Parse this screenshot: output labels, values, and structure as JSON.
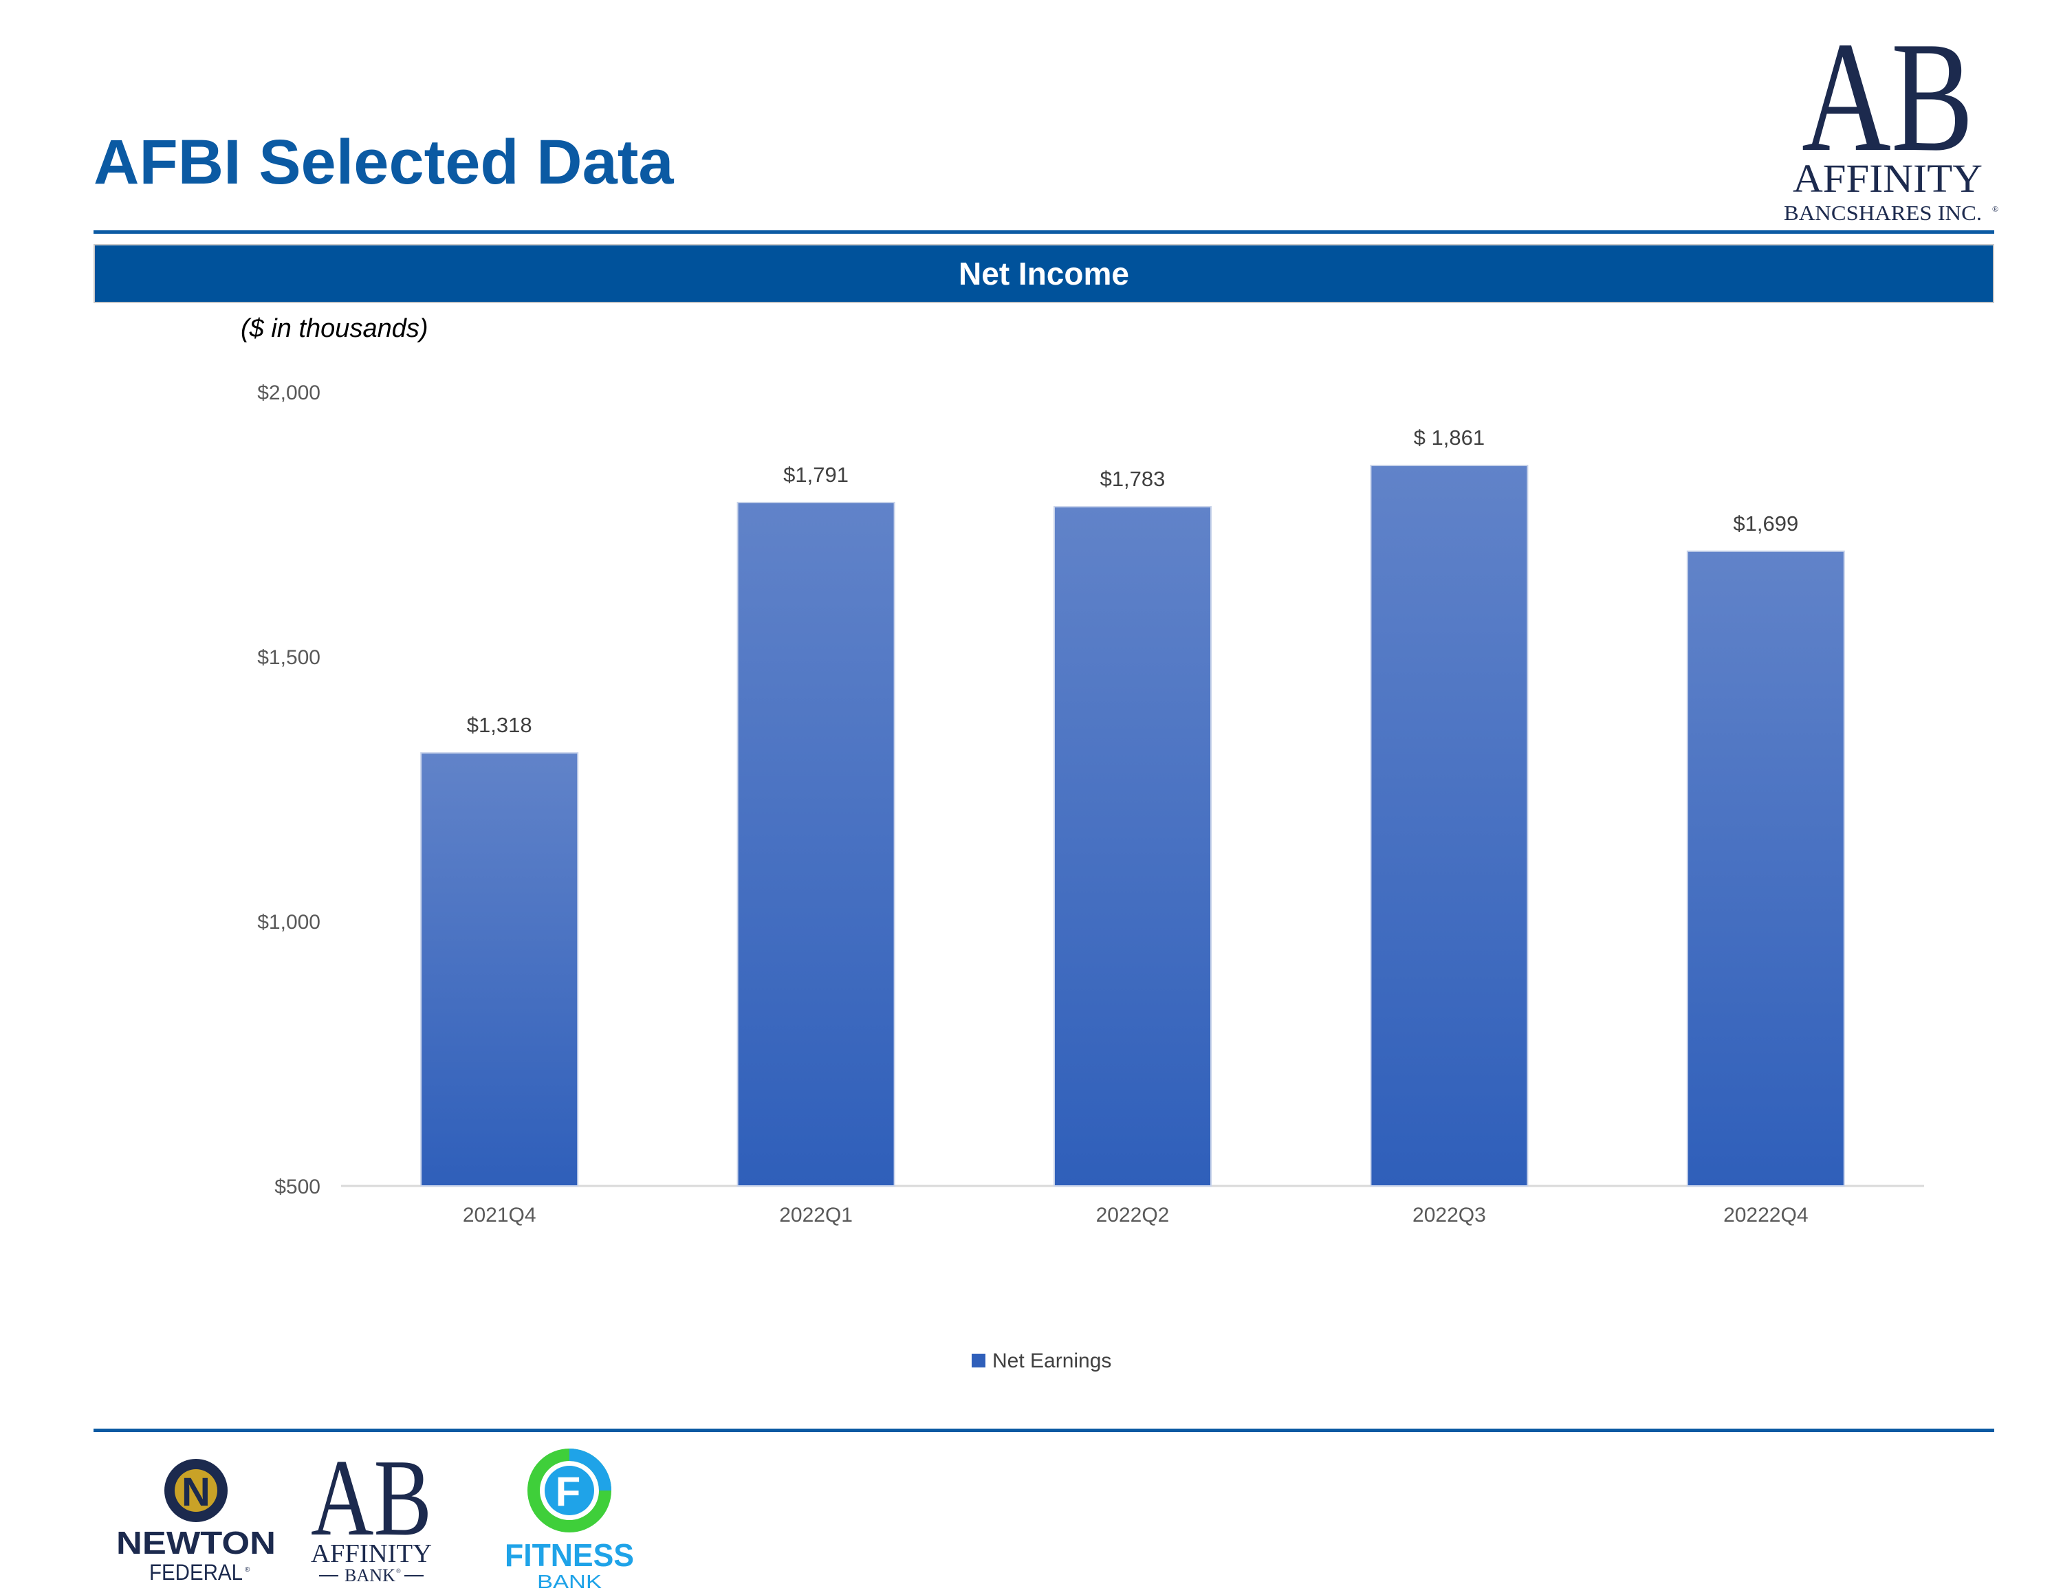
{
  "page": {
    "title": "AFBI Selected Data",
    "banner": "Net Income",
    "units_note": "($ in thousands)"
  },
  "logos": {
    "header": {
      "monogram": "AB",
      "line1": "AFFINITY",
      "line2": "BANCSHARES INC.",
      "mark": "®"
    },
    "footer": [
      {
        "name": "newton-federal",
        "badge": "N",
        "line1": "NEWTON",
        "line2": "FEDERAL",
        "mark": "®"
      },
      {
        "name": "affinity-bank",
        "monogram": "AB",
        "line1": "AFFINITY",
        "line2": "BANK",
        "mark": "®"
      },
      {
        "name": "fitness-bank",
        "badge": "F",
        "line1": "FITNESS",
        "line2": "BANK"
      }
    ]
  },
  "colors": {
    "brand_blue": "#0b5aa3",
    "banner_blue": "#00529b",
    "bar_top": "#6183c9",
    "bar_bottom": "#2f5fba",
    "logo_navy": "#1c2a4e",
    "newton_gold": "#c9a227",
    "fitness_blue": "#1fa3e8",
    "fitness_green": "#3fcf3a"
  },
  "chart_data": {
    "type": "bar",
    "categories": [
      "2021Q4",
      "2022Q1",
      "2022Q2",
      "2022Q3",
      "20222Q4"
    ],
    "series": [
      {
        "name": "Net Earnings",
        "values": [
          1318,
          1791,
          1783,
          1861,
          1699
        ]
      }
    ],
    "data_labels": [
      "$1,318",
      "$1,791",
      "$1,783",
      "$ 1,861",
      "$1,699"
    ],
    "yticks": [
      "$500",
      "$1,000",
      "$1,500",
      "$2,000"
    ],
    "ytick_values": [
      500,
      1000,
      1500,
      2000
    ],
    "ylim": [
      500,
      2000
    ],
    "title": "",
    "xlabel": "",
    "ylabel": "",
    "grid": false,
    "legend": "bottom-center"
  }
}
